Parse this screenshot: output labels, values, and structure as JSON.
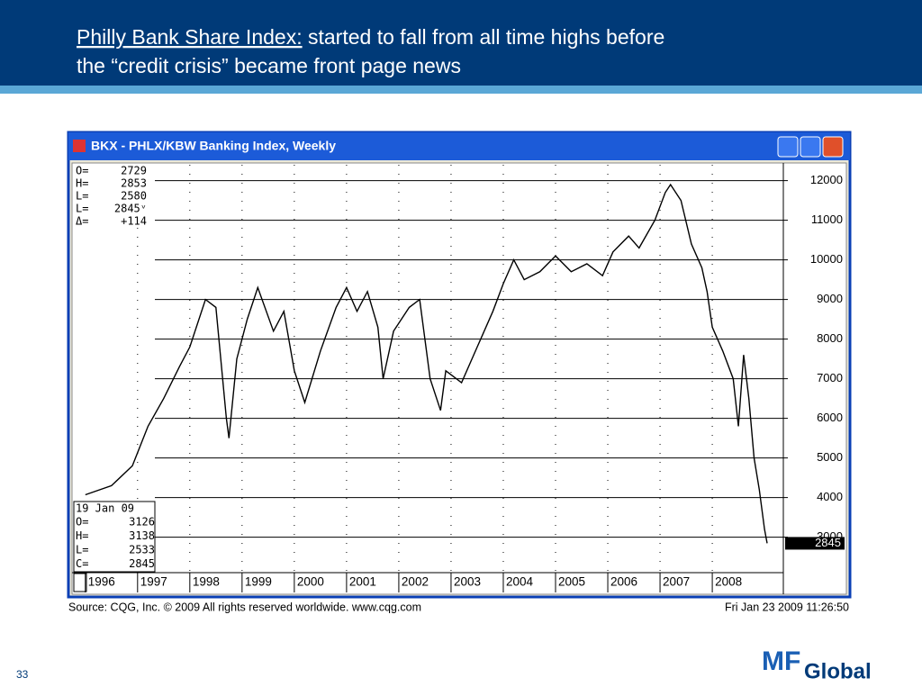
{
  "slide": {
    "title_underlined": "Philly Bank Share Index:",
    "title_rest": " started to fall from all time highs before",
    "title_line2": "the “credit crisis” became front page news",
    "page_number": "33",
    "logo_mf": "MF",
    "logo_global": "Global"
  },
  "chart_data": {
    "type": "line",
    "window_title": "BKX - PHLX/KBW Banking Index, Weekly",
    "source": "Source: CQG, Inc. © 2009 All rights reserved worldwide. www.cqg.com",
    "timestamp": "Fri Jan 23 2009 11:26:50",
    "top_box": [
      {
        "label": "O=",
        "value": "2729"
      },
      {
        "label": "H=",
        "value": "2853"
      },
      {
        "label": "L=",
        "value": "2580"
      },
      {
        "label": "L=",
        "value": "2845ᵛ"
      },
      {
        "label": "Δ=",
        "value": "+114"
      }
    ],
    "bottom_box": {
      "date": "19  Jan  09",
      "rows": [
        {
          "label": "O=",
          "value": "3126"
        },
        {
          "label": "H=",
          "value": "3138"
        },
        {
          "label": "L=",
          "value": "2533"
        },
        {
          "label": "C=",
          "value": "2845"
        }
      ]
    },
    "x": [
      1996.0,
      1996.5,
      1996.9,
      1997.2,
      1997.5,
      1997.8,
      1998.0,
      1998.3,
      1998.5,
      1998.7,
      1998.75,
      1998.9,
      1999.1,
      1999.3,
      1999.6,
      1999.8,
      2000.0,
      2000.2,
      2000.5,
      2000.8,
      2001.0,
      2001.2,
      2001.4,
      2001.6,
      2001.7,
      2001.9,
      2002.2,
      2002.4,
      2002.6,
      2002.8,
      2002.9,
      2003.2,
      2003.5,
      2003.8,
      2004.0,
      2004.2,
      2004.4,
      2004.7,
      2005.0,
      2005.3,
      2005.6,
      2005.9,
      2006.1,
      2006.4,
      2006.6,
      2006.9,
      2007.1,
      2007.2,
      2007.4,
      2007.6,
      2007.8,
      2007.9,
      2008.0,
      2008.2,
      2008.4,
      2008.5,
      2008.6,
      2008.7,
      2008.8,
      2008.9,
      2009.0,
      2009.05
    ],
    "series": [
      {
        "name": "BKX",
        "color": "#000000",
        "values": [
          4070,
          4300,
          4800,
          5800,
          6500,
          7300,
          7800,
          9000,
          8800,
          6000,
          5500,
          7500,
          8500,
          9300,
          8200,
          8700,
          7200,
          6400,
          7700,
          8800,
          9300,
          8700,
          9200,
          8300,
          7000,
          8200,
          8800,
          9000,
          7000,
          6200,
          7200,
          6900,
          7800,
          8700,
          9400,
          10000,
          9500,
          9700,
          10100,
          9700,
          9900,
          9600,
          10200,
          10600,
          10300,
          11000,
          11700,
          11900,
          11500,
          10400,
          9800,
          9200,
          8300,
          7700,
          7000,
          5800,
          7600,
          6500,
          5000,
          4200,
          3200,
          2845
        ]
      }
    ],
    "xlim": [
      1995.78,
      2009.36
    ],
    "xticks": [
      1996,
      1997,
      1998,
      1999,
      2000,
      2001,
      2002,
      2003,
      2004,
      2005,
      2006,
      2007,
      2008
    ],
    "ylim": [
      2150,
      12400
    ],
    "yticks": [
      3000,
      4000,
      5000,
      6000,
      7000,
      8000,
      9000,
      10000,
      11000,
      12000
    ],
    "grid": true
  }
}
